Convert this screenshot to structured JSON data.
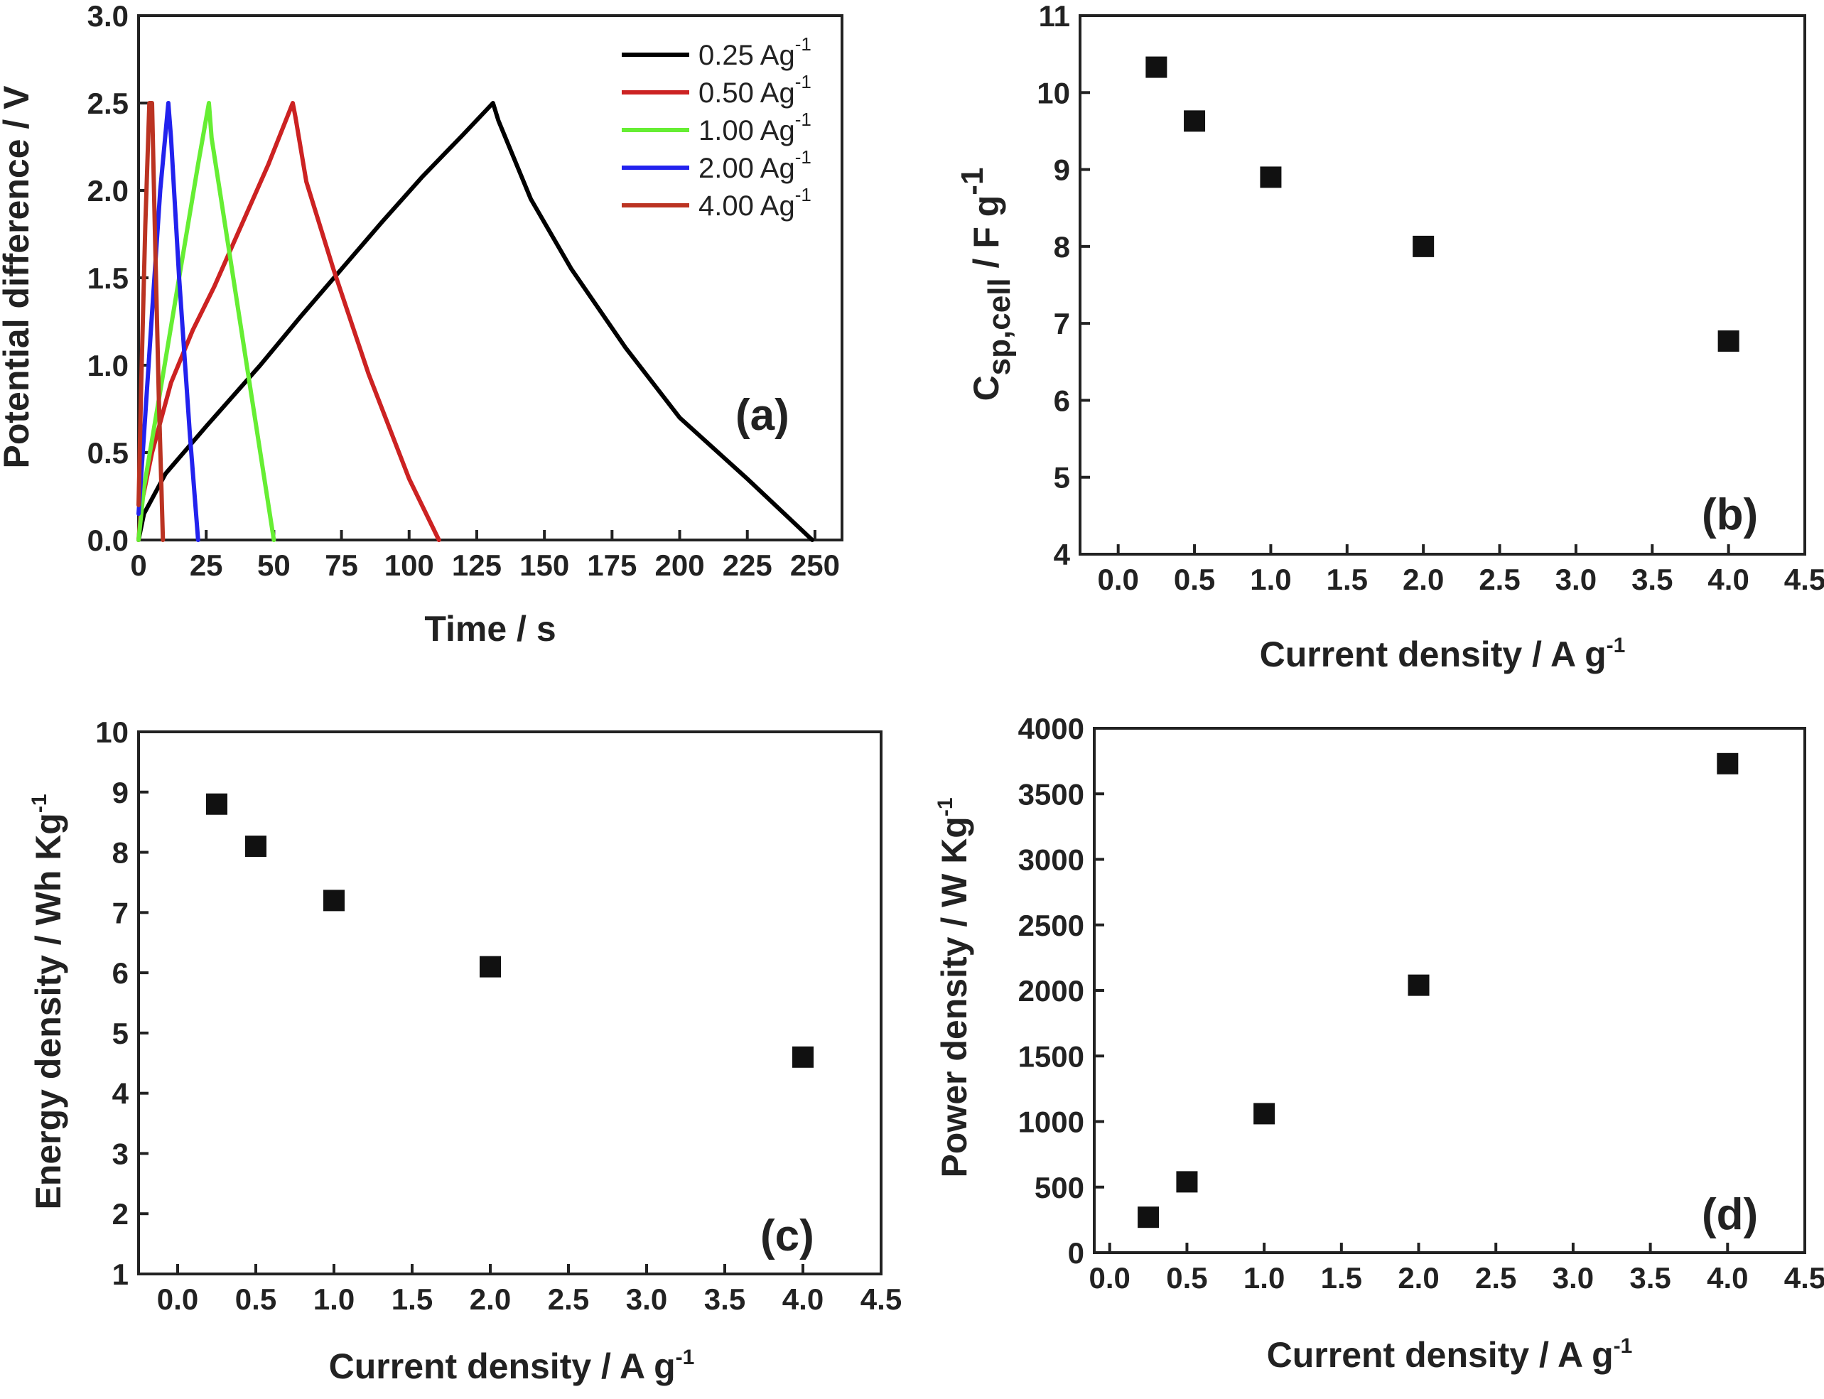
{
  "chart_data": [
    {
      "id": "a",
      "type": "line",
      "panel_label": "(a)",
      "xlabel": "Time / s",
      "ylabel": "Potential difference / V",
      "xlim": [
        0,
        260
      ],
      "ylim": [
        0,
        3.0
      ],
      "xticks": [
        "0",
        "25",
        "50",
        "75",
        "100",
        "125",
        "150",
        "175",
        "200",
        "225",
        "250"
      ],
      "yticks": [
        "0.0",
        "0.5",
        "1.0",
        "1.5",
        "2.0",
        "2.5",
        "3.0"
      ],
      "legend_position": "top-right",
      "series": [
        {
          "name": "0.25 Ag-1",
          "color": "#000000",
          "x": [
            0,
            2,
            10,
            25,
            45,
            60,
            75,
            90,
            105,
            120,
            131,
            133,
            145,
            160,
            180,
            200,
            225,
            249
          ],
          "y": [
            0,
            0.15,
            0.38,
            0.65,
            1.0,
            1.28,
            1.55,
            1.82,
            2.08,
            2.32,
            2.5,
            2.4,
            1.95,
            1.55,
            1.1,
            0.7,
            0.35,
            0.0
          ]
        },
        {
          "name": "0.50 Ag-1",
          "color": "#cc2222",
          "x": [
            0,
            1,
            5,
            12,
            20,
            28,
            38,
            48,
            57,
            58,
            62,
            72,
            85,
            100,
            111
          ],
          "y": [
            0,
            0.2,
            0.5,
            0.9,
            1.2,
            1.45,
            1.8,
            2.15,
            2.5,
            2.42,
            2.05,
            1.55,
            0.95,
            0.35,
            0.0
          ]
        },
        {
          "name": "1.00 Ag-1",
          "color": "#66ee33",
          "x": [
            0,
            2,
            8,
            15,
            22,
            26,
            27,
            34,
            42,
            50
          ],
          "y": [
            0,
            0.3,
            0.85,
            1.5,
            2.15,
            2.5,
            2.3,
            1.6,
            0.8,
            0.0
          ]
        },
        {
          "name": "2.00 Ag-1",
          "color": "#2222ee",
          "x": [
            0,
            2,
            5,
            8,
            11,
            12,
            15,
            19,
            22
          ],
          "y": [
            0.15,
            0.6,
            1.3,
            2.0,
            2.5,
            2.3,
            1.5,
            0.6,
            0.0
          ]
        },
        {
          "name": "4.00 Ag-1",
          "color": "#bb3322",
          "x": [
            0,
            1,
            2.5,
            4,
            5,
            6,
            7.5,
            9
          ],
          "y": [
            0.2,
            0.9,
            1.8,
            2.5,
            2.5,
            1.8,
            0.8,
            0.0
          ]
        }
      ]
    },
    {
      "id": "b",
      "type": "scatter",
      "panel_label": "(b)",
      "xlabel": "Current density / A g-1",
      "ylabel": "Csp,cell / F g-1",
      "xlim": [
        -0.25,
        4.5
      ],
      "ylim": [
        4,
        11
      ],
      "xticks": [
        "0.0",
        "0.5",
        "1.0",
        "1.5",
        "2.0",
        "2.5",
        "3.0",
        "3.5",
        "4.0",
        "4.5"
      ],
      "yticks": [
        "4",
        "5",
        "6",
        "7",
        "8",
        "9",
        "10",
        "11"
      ],
      "x": [
        0.25,
        0.5,
        1.0,
        2.0,
        4.0
      ],
      "y": [
        10.33,
        9.63,
        8.9,
        8.0,
        6.77
      ]
    },
    {
      "id": "c",
      "type": "scatter",
      "panel_label": "(c)",
      "xlabel": "Current density / A g-1",
      "ylabel": "Energy density / Wh Kg-1",
      "xlim": [
        -0.25,
        4.5
      ],
      "ylim": [
        1,
        10
      ],
      "xticks": [
        "0.0",
        "0.5",
        "1.0",
        "1.5",
        "2.0",
        "2.5",
        "3.0",
        "3.5",
        "4.0",
        "4.5"
      ],
      "yticks": [
        "1",
        "2",
        "3",
        "4",
        "5",
        "6",
        "7",
        "8",
        "9",
        "10"
      ],
      "x": [
        0.25,
        0.5,
        1.0,
        2.0,
        4.0
      ],
      "y": [
        8.8,
        8.1,
        7.2,
        6.1,
        4.6
      ]
    },
    {
      "id": "d",
      "type": "scatter",
      "panel_label": "(d)",
      "xlabel": "Current density / A g-1",
      "ylabel": "Power density / W Kg-1",
      "xlim": [
        -0.1,
        4.5
      ],
      "ylim": [
        0,
        4000
      ],
      "xticks": [
        "0.0",
        "0.5",
        "1.0",
        "1.5",
        "2.0",
        "2.5",
        "3.0",
        "3.5",
        "4.0",
        "4.5"
      ],
      "yticks": [
        "0",
        "500",
        "1000",
        "1500",
        "2000",
        "2500",
        "3000",
        "3500",
        "4000"
      ],
      "x": [
        0.25,
        0.5,
        1.0,
        2.0,
        4.0
      ],
      "y": [
        270,
        540,
        1060,
        2040,
        3730
      ]
    }
  ]
}
